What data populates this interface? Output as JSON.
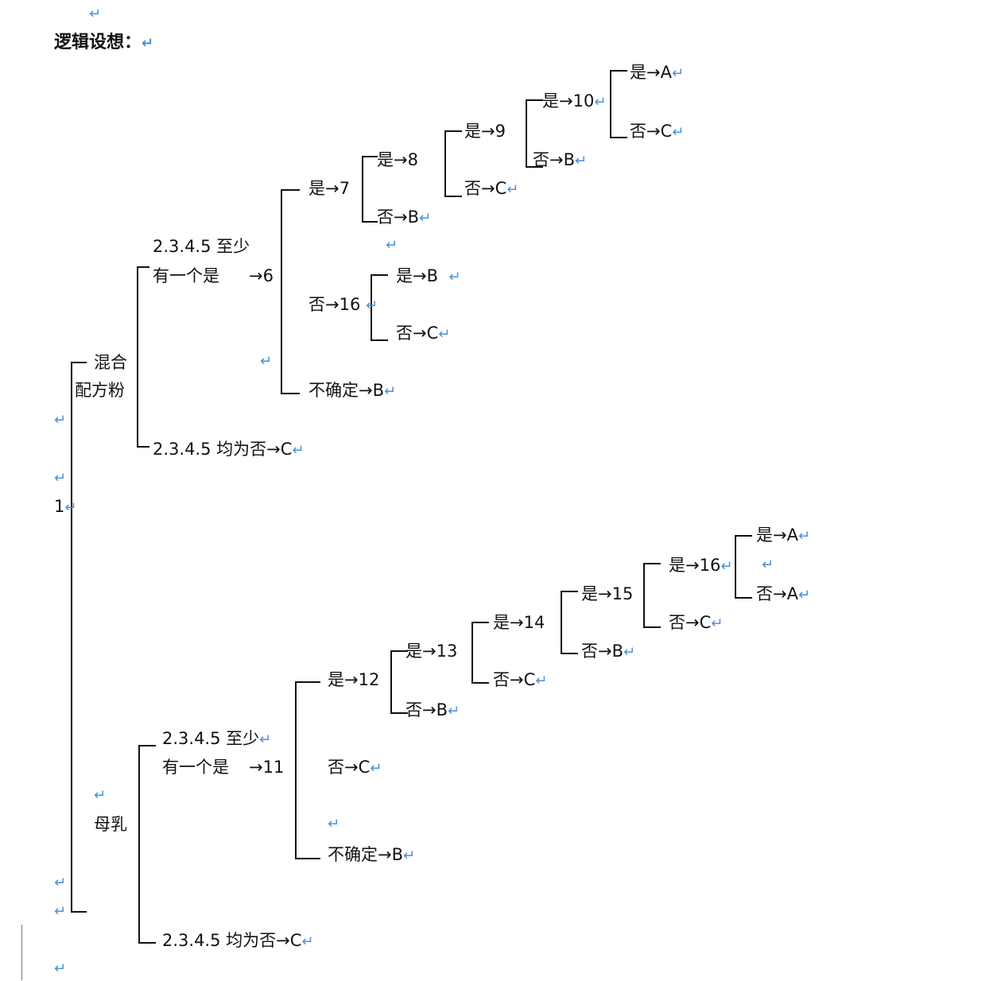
{
  "title": "逻辑设想：",
  "return_mark": "↵",
  "root": "1",
  "branches": {
    "mixed_top": "混合",
    "mixed_bottom": "配方粉",
    "breast": "母乳"
  },
  "mixed": {
    "q_line1": "2.3.4.5 至少",
    "q_line2": "有一个是",
    "q_arrow": "→6",
    "all_no": "2.3.4.5 均为否→C",
    "n6_yes": "是→7",
    "n6_no": "否→16",
    "n6_unsure": "不确定→B",
    "n7_yes": "是→8",
    "n7_no": "否→B",
    "n8_yes": "是→9",
    "n8_no": "否→C",
    "n9_yes": "是→10",
    "n9_no": "否→B",
    "n10_yes": "是→A",
    "n10_no": "否→C",
    "n16_yes": "是→B",
    "n16_no": "否→C"
  },
  "breast": {
    "q_line1": "2.3.4.5 至少",
    "q_line2": "有一个是",
    "q_arrow": "→11",
    "all_no": "2.3.4.5 均为否→C",
    "n11_yes": "是→12",
    "n11_no": "否→C",
    "n11_unsure": "不确定→B",
    "n12_yes": "是→13",
    "n12_no": "否→B",
    "n13_yes": "是→14",
    "n13_no": "否→C",
    "n14_yes": "是→15",
    "n14_no": "否→B",
    "n15_yes": "是→16",
    "n15_no": "否→C",
    "n16_yes": "是→A",
    "n16_no": "否→A"
  }
}
